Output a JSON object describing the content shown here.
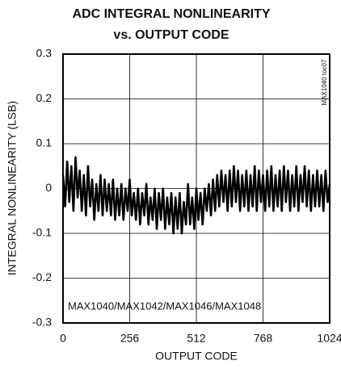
{
  "chart_data": {
    "type": "line",
    "title": "ADC INTEGRAL NONLINEARITY",
    "subtitle": "vs. OUTPUT CODE",
    "x_label": "OUTPUT CODE",
    "y_label": "INTEGRAL NONLINEARITY (LSB)",
    "annotations": [
      "MAX1040/MAX1042/MAX1046/MAX1048",
      "MAX1040 toc07"
    ],
    "xlim": [
      0,
      1024
    ],
    "xticks": [
      0,
      256,
      512,
      768,
      1024
    ],
    "ylim": [
      -0.3,
      0.3
    ],
    "yticks": [
      0.3,
      0.2,
      0.1,
      0,
      -0.1,
      -0.2,
      -0.3
    ],
    "grid": true,
    "x": [
      0,
      8,
      16,
      24,
      32,
      40,
      48,
      56,
      64,
      72,
      80,
      88,
      96,
      104,
      112,
      120,
      128,
      136,
      144,
      152,
      160,
      168,
      176,
      184,
      192,
      200,
      208,
      216,
      224,
      232,
      240,
      248,
      256,
      264,
      272,
      280,
      288,
      296,
      304,
      312,
      320,
      328,
      336,
      344,
      352,
      360,
      368,
      376,
      384,
      392,
      400,
      408,
      416,
      424,
      432,
      440,
      448,
      456,
      464,
      472,
      480,
      488,
      496,
      504,
      512,
      520,
      528,
      536,
      544,
      552,
      560,
      568,
      576,
      584,
      592,
      600,
      608,
      616,
      624,
      632,
      640,
      648,
      656,
      664,
      672,
      680,
      688,
      696,
      704,
      712,
      720,
      728,
      736,
      744,
      752,
      760,
      768,
      776,
      784,
      792,
      800,
      808,
      816,
      824,
      832,
      840,
      848,
      856,
      864,
      872,
      880,
      888,
      896,
      904,
      912,
      920,
      928,
      936,
      944,
      952,
      960,
      968,
      976,
      984,
      992,
      1000,
      1008,
      1016,
      1024
    ],
    "series": [
      {
        "color": "#000000",
        "values": [
          0.03,
          -0.04,
          0.06,
          -0.03,
          0.05,
          -0.05,
          0.07,
          -0.02,
          0.04,
          -0.05,
          0.03,
          -0.06,
          0.05,
          -0.04,
          0.02,
          -0.07,
          0.01,
          -0.05,
          0.03,
          -0.06,
          0.02,
          -0.05,
          0.01,
          -0.06,
          0.02,
          -0.07,
          0.0,
          -0.06,
          0.01,
          -0.07,
          0.0,
          -0.05,
          0.02,
          -0.06,
          -0.01,
          -0.07,
          0.0,
          -0.08,
          -0.01,
          -0.06,
          0.01,
          -0.08,
          -0.02,
          -0.07,
          0.0,
          -0.09,
          -0.01,
          -0.07,
          0.0,
          -0.09,
          -0.02,
          -0.08,
          -0.01,
          -0.1,
          -0.02,
          -0.09,
          -0.01,
          -0.1,
          -0.03,
          -0.08,
          0.01,
          -0.08,
          -0.02,
          -0.09,
          0.0,
          -0.07,
          -0.01,
          -0.08,
          0.0,
          -0.05,
          0.01,
          -0.06,
          0.02,
          -0.05,
          0.03,
          -0.04,
          0.04,
          -0.03,
          0.03,
          -0.05,
          0.04,
          -0.04,
          0.05,
          -0.03,
          0.04,
          -0.05,
          0.03,
          -0.04,
          0.04,
          -0.05,
          0.03,
          -0.04,
          0.05,
          -0.05,
          0.04,
          -0.03,
          0.03,
          -0.05,
          0.04,
          -0.04,
          0.05,
          -0.05,
          0.03,
          -0.04,
          0.04,
          -0.05,
          0.05,
          -0.03,
          0.04,
          -0.05,
          0.03,
          -0.04,
          0.05,
          -0.05,
          0.03,
          -0.03,
          0.05,
          -0.04,
          0.04,
          -0.05,
          0.03,
          -0.04,
          0.04,
          -0.04,
          0.03,
          -0.05,
          0.04,
          -0.03,
          0.01
        ]
      }
    ]
  }
}
